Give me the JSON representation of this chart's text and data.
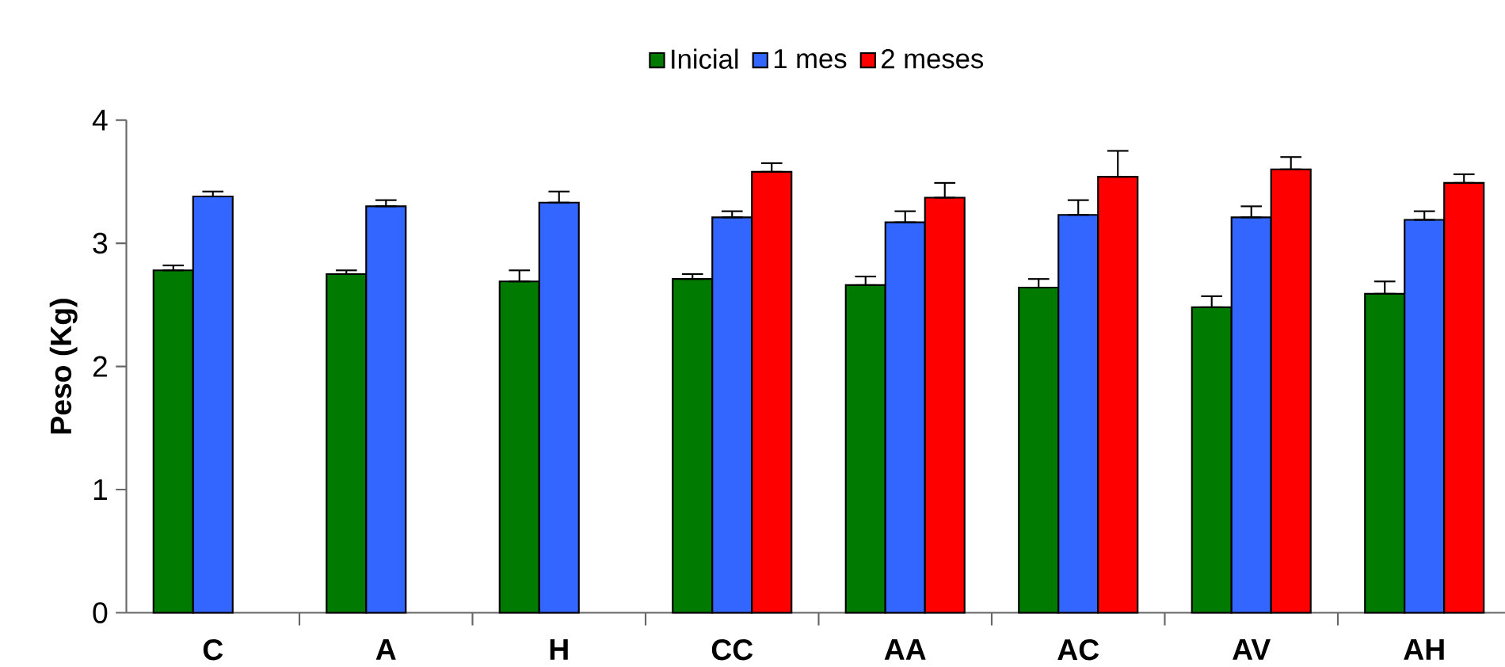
{
  "chart_data": {
    "type": "bar",
    "ylabel": "**Peso (Kg)**",
    "categories": [
      "C",
      "A",
      "H",
      "CC",
      "AA",
      "AC",
      "AV",
      "AH"
    ],
    "series": [
      {
        "name": "Inicial",
        "color": "#007a00",
        "values": [
          2.78,
          2.75,
          2.69,
          2.71,
          2.66,
          2.64,
          2.48,
          2.59
        ],
        "errors": [
          [
            2.78,
            2.82
          ],
          [
            2.75,
            2.78
          ],
          [
            2.69,
            2.78
          ],
          [
            2.71,
            2.75
          ],
          [
            2.66,
            2.73
          ],
          [
            2.64,
            2.71
          ],
          [
            2.48,
            2.57
          ],
          [
            2.59,
            2.69
          ]
        ]
      },
      {
        "name": "1 mes",
        "color": "#3366ff",
        "values": [
          3.38,
          3.3,
          3.33,
          3.21,
          3.17,
          3.23,
          3.21,
          3.19
        ],
        "errors": [
          [
            3.38,
            3.42
          ],
          [
            3.3,
            3.35
          ],
          [
            3.33,
            3.42
          ],
          [
            3.21,
            3.26
          ],
          [
            3.17,
            3.26
          ],
          [
            3.23,
            3.35
          ],
          [
            3.21,
            3.3
          ],
          [
            3.19,
            3.26
          ]
        ]
      },
      {
        "name": "2 meses",
        "color": "#ff0000",
        "values": [
          null,
          null,
          null,
          3.58,
          3.37,
          3.54,
          3.6,
          3.49
        ],
        "errors": [
          null,
          null,
          null,
          [
            3.58,
            3.65
          ],
          [
            3.37,
            3.49
          ],
          [
            3.54,
            3.75
          ],
          [
            3.6,
            3.7
          ],
          [
            3.49,
            3.56
          ]
        ]
      }
    ],
    "ylim": [
      0,
      4
    ],
    "yticks": [
      0,
      1,
      2,
      3,
      4
    ],
    "grid": false,
    "legend": "top"
  }
}
